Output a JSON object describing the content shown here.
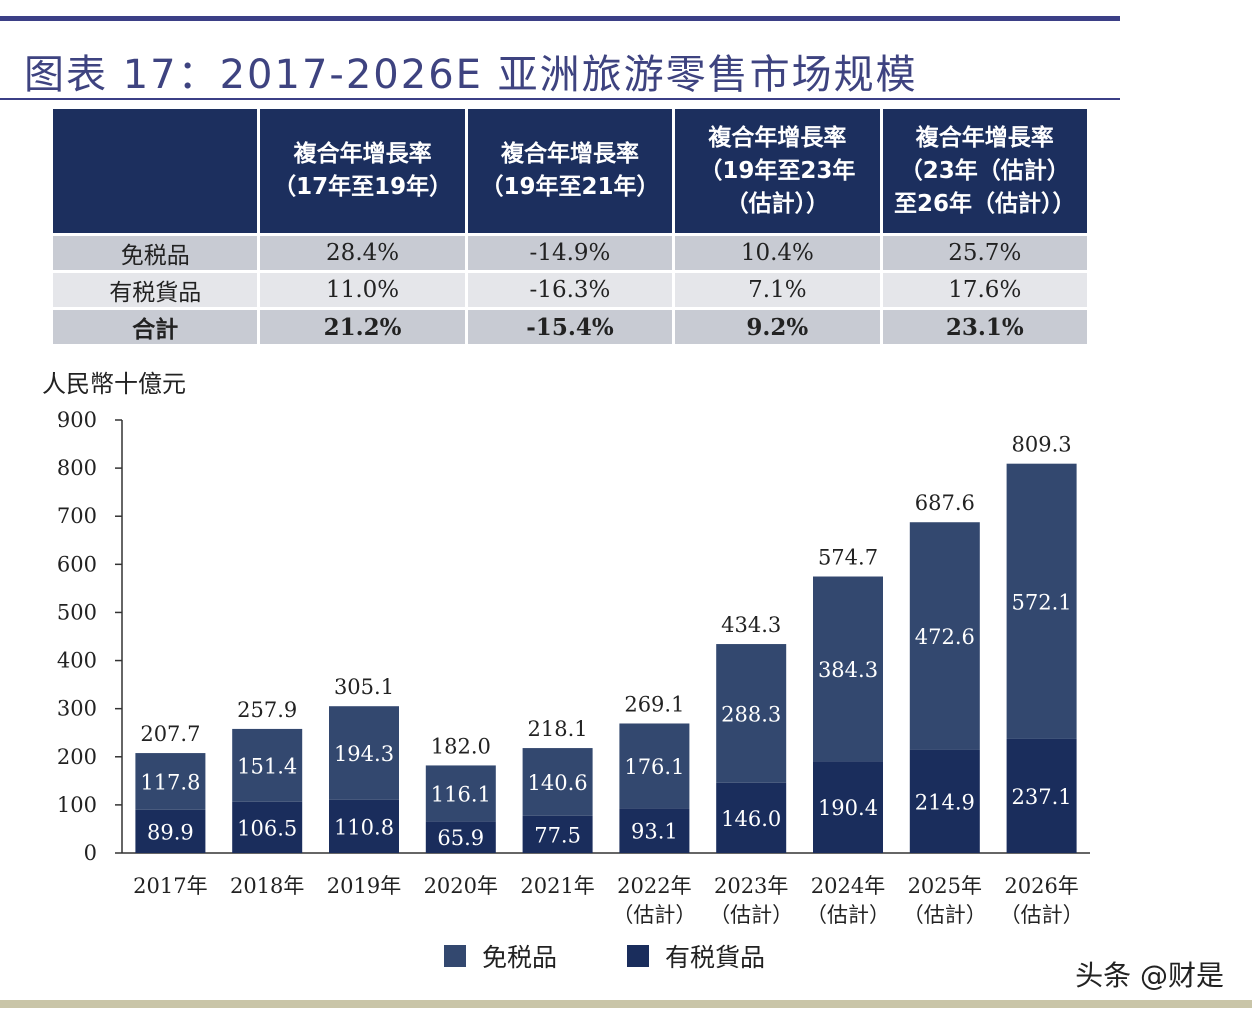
{
  "title": "图表 17：2017-2026E 亚洲旅游零售市场规模",
  "watermark": "头条 @财是",
  "table": {
    "headers": [
      "",
      "複合年增長率\n（17年至19年）",
      "複合年增長率\n（19年至21年）",
      "複合年增長率\n（19年至23年\n（估計））",
      "複合年增長率\n（23年（估計）\n至26年（估計））"
    ],
    "rows": [
      {
        "label": "免税品",
        "values": [
          "28.4%",
          "-14.9%",
          "10.4%",
          "25.7%"
        ]
      },
      {
        "label": "有税貨品",
        "values": [
          "11.0%",
          "-16.3%",
          "7.1%",
          "17.6%"
        ]
      },
      {
        "label": "合計",
        "values": [
          "21.2%",
          "-15.4%",
          "9.2%",
          "23.1%"
        ]
      }
    ]
  },
  "chart_data": {
    "type": "bar",
    "stacked": true,
    "unit_label": "人民幣十億元",
    "categories": [
      "2017年",
      "2018年",
      "2019年",
      "2020年",
      "2021年",
      "2022年\n（估計）",
      "2023年\n（估計）",
      "2024年\n（估計）",
      "2025年\n（估計）",
      "2026年\n（估計）"
    ],
    "series": [
      {
        "name": "有税貨品",
        "color": "#1a2d5c",
        "values": [
          89.9,
          106.5,
          110.8,
          65.9,
          77.5,
          93.1,
          146.0,
          190.4,
          214.9,
          237.1
        ]
      },
      {
        "name": "免税品",
        "color": "#33486f",
        "values": [
          117.8,
          151.4,
          194.3,
          116.1,
          140.6,
          176.1,
          288.3,
          384.3,
          472.6,
          572.1
        ]
      }
    ],
    "totals": [
      207.7,
      257.9,
      305.1,
      182.0,
      218.1,
      269.1,
      434.3,
      574.7,
      687.6,
      809.3
    ],
    "ylim": [
      0,
      900
    ],
    "yticks": [
      0,
      100,
      200,
      300,
      400,
      500,
      600,
      700,
      800,
      900
    ],
    "legend": [
      {
        "name": "免税品",
        "color": "#33486f"
      },
      {
        "name": "有税貨品",
        "color": "#1a2d5c"
      }
    ],
    "legend_position": "bottom"
  }
}
